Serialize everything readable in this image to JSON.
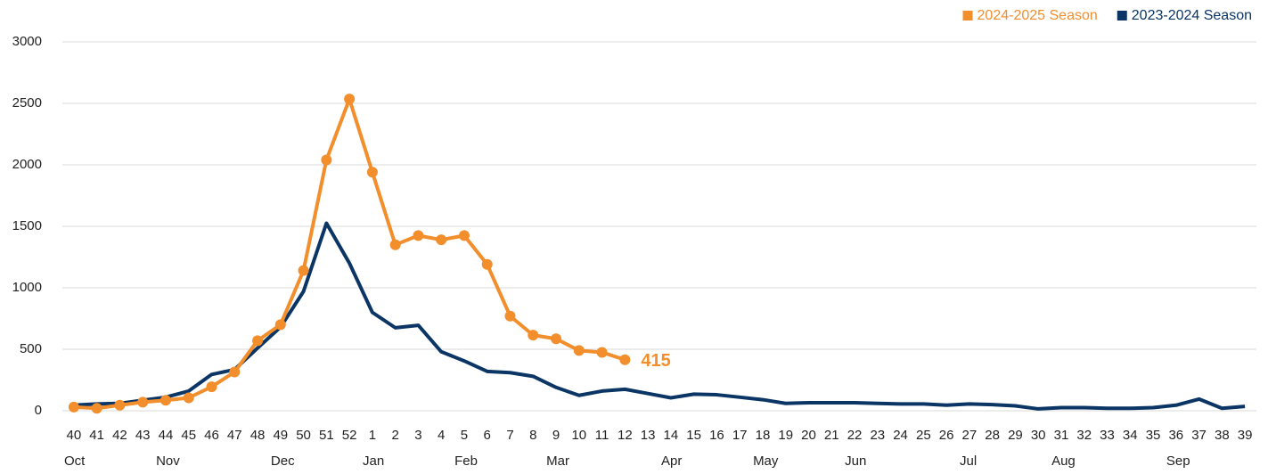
{
  "chart_data": {
    "type": "line",
    "categories": [
      "40",
      "41",
      "42",
      "43",
      "44",
      "45",
      "46",
      "47",
      "48",
      "49",
      "50",
      "51",
      "52",
      "1",
      "2",
      "3",
      "4",
      "5",
      "6",
      "7",
      "8",
      "9",
      "10",
      "11",
      "12",
      "13",
      "14",
      "15",
      "16",
      "17",
      "18",
      "19",
      "20",
      "21",
      "22",
      "23",
      "24",
      "25",
      "26",
      "27",
      "28",
      "29",
      "30",
      "31",
      "32",
      "33",
      "34",
      "35",
      "36",
      "37",
      "38",
      "39"
    ],
    "month_categories": [
      "Oct",
      null,
      null,
      null,
      "Nov",
      null,
      null,
      null,
      null,
      "Dec",
      null,
      null,
      null,
      "Jan",
      null,
      null,
      null,
      "Feb",
      null,
      null,
      null,
      "Mar",
      null,
      null,
      null,
      null,
      "Apr",
      null,
      null,
      null,
      "May",
      null,
      null,
      null,
      "Jun",
      null,
      null,
      null,
      null,
      "Jul",
      null,
      null,
      null,
      "Aug",
      null,
      null,
      null,
      null,
      "Sep",
      null,
      null,
      null
    ],
    "series": [
      {
        "name": "2024-2025 Season",
        "color": "#f28e2b",
        "markers": true,
        "values": [
          30,
          20,
          45,
          70,
          85,
          105,
          195,
          315,
          570,
          700,
          1140,
          2040,
          2535,
          1940,
          1350,
          1425,
          1390,
          1425,
          1190,
          770,
          615,
          585,
          490,
          475,
          415,
          null,
          null,
          null,
          null,
          null,
          null,
          null,
          null,
          null,
          null,
          null,
          null,
          null,
          null,
          null,
          null,
          null,
          null,
          null,
          null,
          null,
          null,
          null,
          null,
          null,
          null,
          null
        ],
        "labeled_point": 24
      },
      {
        "name": "2023-2024 Season",
        "color": "#0b3564",
        "markers": false,
        "values": [
          45,
          55,
          60,
          85,
          110,
          160,
          295,
          335,
          510,
          680,
          970,
          1525,
          1200,
          800,
          675,
          695,
          480,
          405,
          320,
          310,
          280,
          190,
          125,
          160,
          175,
          140,
          105,
          135,
          130,
          110,
          90,
          60,
          65,
          65,
          65,
          60,
          55,
          55,
          45,
          55,
          50,
          40,
          15,
          25,
          25,
          20,
          20,
          25,
          45,
          95,
          20,
          35
        ]
      }
    ],
    "ylim": [
      0,
      3000
    ],
    "yticks": [
      0,
      500,
      1000,
      1500,
      2000,
      2500,
      3000
    ],
    "grid": true,
    "legend": "top-right"
  }
}
